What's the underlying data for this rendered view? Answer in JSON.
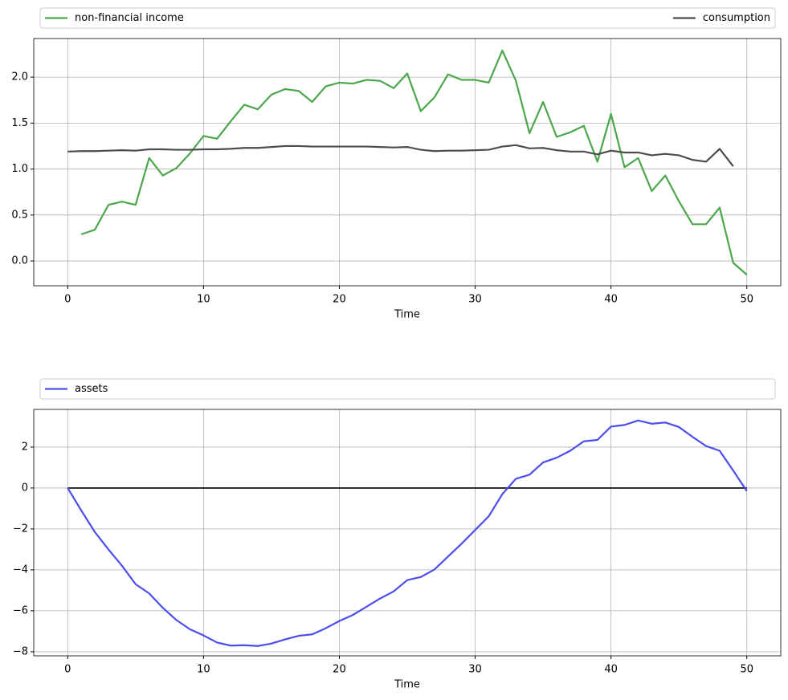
{
  "chart_data": [
    {
      "type": "line",
      "xlabel": "Time",
      "grid": true,
      "legend": "top-expand",
      "x": [
        0,
        1,
        2,
        3,
        4,
        5,
        6,
        7,
        8,
        9,
        10,
        11,
        12,
        13,
        14,
        15,
        16,
        17,
        18,
        19,
        20,
        21,
        22,
        23,
        24,
        25,
        26,
        27,
        28,
        29,
        30,
        31,
        32,
        33,
        34,
        35,
        36,
        37,
        38,
        39,
        40,
        41,
        42,
        43,
        44,
        45,
        46,
        47,
        48,
        49,
        50
      ],
      "xlim": [
        -2.5,
        52.5
      ],
      "xticks": [
        0,
        10,
        20,
        30,
        40,
        50
      ],
      "ylim": [
        -0.27,
        2.42
      ],
      "yticks": [
        {
          "value": 0,
          "label": "0.0"
        },
        {
          "value": 0.5,
          "label": "0.5"
        },
        {
          "value": 1,
          "label": "1.0"
        },
        {
          "value": 1.5,
          "label": "1.5"
        },
        {
          "value": 2,
          "label": "2.0"
        }
      ],
      "series": [
        {
          "name": "non-financial income",
          "color": "#4ca64c",
          "values": [
            null,
            0.29,
            0.34,
            0.61,
            0.645,
            0.61,
            1.12,
            0.93,
            1.01,
            1.17,
            1.36,
            1.33,
            1.52,
            1.7,
            1.65,
            1.81,
            1.87,
            1.85,
            1.73,
            1.9,
            1.94,
            1.93,
            1.97,
            1.96,
            1.88,
            2.04,
            1.63,
            1.78,
            2.03,
            1.97,
            1.97,
            1.94,
            2.29,
            1.96,
            1.39,
            1.73,
            1.35,
            1.4,
            1.47,
            1.08,
            1.6,
            1.02,
            1.12,
            0.76,
            0.93,
            0.65,
            0.4,
            0.4,
            0.58,
            -0.02,
            -0.15
          ]
        },
        {
          "name": "consumption",
          "color": "#4d4d4d",
          "values": [
            1.19,
            1.195,
            1.195,
            1.2,
            1.205,
            1.2,
            1.215,
            1.215,
            1.21,
            1.21,
            1.215,
            1.215,
            1.22,
            1.23,
            1.23,
            1.24,
            1.25,
            1.25,
            1.245,
            1.245,
            1.245,
            1.245,
            1.245,
            1.24,
            1.235,
            1.24,
            1.21,
            1.195,
            1.2,
            1.2,
            1.205,
            1.21,
            1.245,
            1.26,
            1.225,
            1.23,
            1.205,
            1.19,
            1.19,
            1.16,
            1.2,
            1.18,
            1.18,
            1.15,
            1.165,
            1.15,
            1.1,
            1.08,
            1.22,
            1.03,
            null
          ]
        }
      ]
    },
    {
      "type": "line",
      "xlabel": "Time",
      "grid": true,
      "legend": "top-expand",
      "hline": 0,
      "x": [
        0,
        1,
        2,
        3,
        4,
        5,
        6,
        7,
        8,
        9,
        10,
        11,
        12,
        13,
        14,
        15,
        16,
        17,
        18,
        19,
        20,
        21,
        22,
        23,
        24,
        25,
        26,
        27,
        28,
        29,
        30,
        31,
        32,
        33,
        34,
        35,
        36,
        37,
        38,
        39,
        40,
        41,
        42,
        43,
        44,
        45,
        46,
        47,
        48,
        49,
        50
      ],
      "xlim": [
        -2.5,
        52.5
      ],
      "xticks": [
        0,
        10,
        20,
        30,
        40,
        50
      ],
      "ylim": [
        -8.2,
        3.84
      ],
      "yticks": [
        {
          "value": -8,
          "label": "−8"
        },
        {
          "value": -6,
          "label": "−6"
        },
        {
          "value": -4,
          "label": "−4"
        },
        {
          "value": -2,
          "label": "−2"
        },
        0,
        2
      ],
      "series": [
        {
          "name": "assets",
          "color": "#4d4dee",
          "values": [
            0,
            -1.1,
            -2.15,
            -3.0,
            -3.8,
            -4.7,
            -5.15,
            -5.85,
            -6.45,
            -6.9,
            -7.2,
            -7.55,
            -7.7,
            -7.68,
            -7.72,
            -7.6,
            -7.4,
            -7.22,
            -7.15,
            -6.85,
            -6.5,
            -6.2,
            -5.8,
            -5.4,
            -5.05,
            -4.5,
            -4.35,
            -3.98,
            -3.35,
            -2.72,
            -2.05,
            -1.38,
            -0.3,
            0.45,
            0.65,
            1.25,
            1.48,
            1.82,
            2.28,
            2.35,
            3.0,
            3.08,
            3.3,
            3.14,
            3.2,
            2.98,
            2.5,
            2.05,
            1.82,
            0.85,
            -0.15
          ]
        }
      ]
    }
  ]
}
